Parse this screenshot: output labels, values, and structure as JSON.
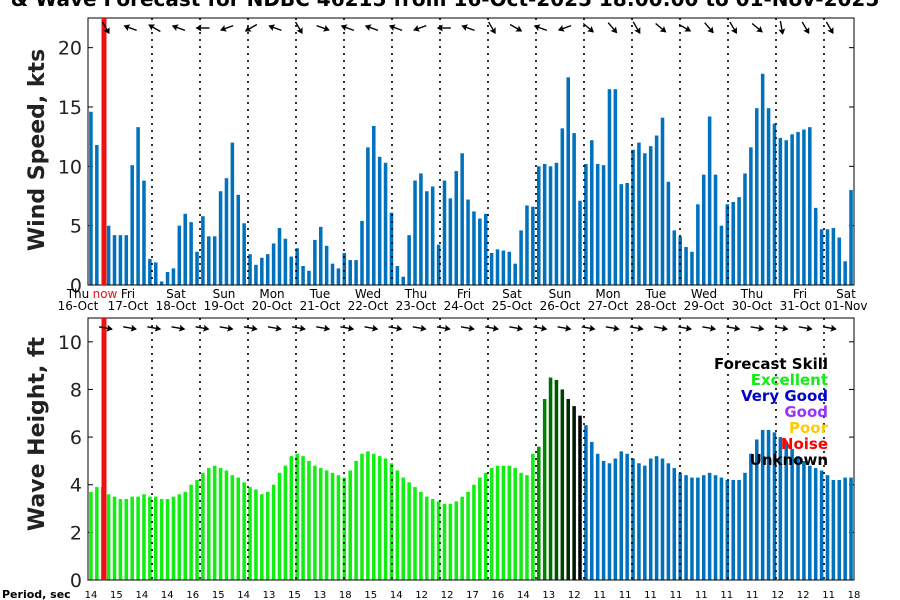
{
  "title": "& Wave Forecast for NDBC 46215 from 16-Oct-2025 18:00:00 to 01-Nov-2025",
  "now_label": "now",
  "period_label": "Period, sec",
  "colors": {
    "bar": "#0072bd",
    "now_line": "#ee1111",
    "excellent": "#11ee11",
    "very_good": "#0000cc",
    "good": "#9933ff",
    "poor": "#ffcc00",
    "noise": "#ff0000",
    "unknown": "#000000"
  },
  "day_ticks": [
    {
      "top": "Thu",
      "bottom": "16-Oct"
    },
    {
      "top": "Fri",
      "bottom": "17-Oct"
    },
    {
      "top": "Sat",
      "bottom": "18-Oct"
    },
    {
      "top": "Sun",
      "bottom": "19-Oct"
    },
    {
      "top": "Mon",
      "bottom": "20-Oct"
    },
    {
      "top": "Tue",
      "bottom": "21-Oct"
    },
    {
      "top": "Wed",
      "bottom": "22-Oct"
    },
    {
      "top": "Thu",
      "bottom": "23-Oct"
    },
    {
      "top": "Fri",
      "bottom": "24-Oct"
    },
    {
      "top": "Sat",
      "bottom": "25-Oct"
    },
    {
      "top": "Sun",
      "bottom": "26-Oct"
    },
    {
      "top": "Mon",
      "bottom": "27-Oct"
    },
    {
      "top": "Tue",
      "bottom": "28-Oct"
    },
    {
      "top": "Wed",
      "bottom": "29-Oct"
    },
    {
      "top": "Thu",
      "bottom": "30-Oct"
    },
    {
      "top": "Fri",
      "bottom": "31-Oct"
    },
    {
      "top": "Sat",
      "bottom": "01-Nov"
    }
  ],
  "legend": {
    "title": "Forecast Skill",
    "items": [
      {
        "label": "Excellent",
        "color": "#11ee11"
      },
      {
        "label": "Very Good",
        "color": "#0000cc"
      },
      {
        "label": "Good",
        "color": "#9933ff"
      },
      {
        "label": "Poor",
        "color": "#ffcc00"
      },
      {
        "label": "Noise",
        "color": "#ff0000"
      },
      {
        "label": "Unknown",
        "color": "#000000"
      }
    ]
  },
  "period_values": [
    14,
    15,
    14,
    14,
    16,
    15,
    14,
    13,
    15,
    13,
    18,
    15,
    14,
    12,
    12,
    17,
    16,
    14,
    13,
    12,
    11,
    11,
    11,
    11,
    11,
    11,
    11,
    12,
    12,
    11,
    18
  ],
  "chart_data": [
    {
      "type": "bar",
      "ylabel": "Wind Speed, kts",
      "ylim": [
        0,
        22.5
      ],
      "yticks": [
        0,
        5,
        10,
        15,
        20
      ],
      "grid": "vertical dotted lines at day boundaries",
      "values": [
        14.6,
        11.8,
        0,
        5.0,
        4.2,
        4.2,
        4.2,
        10.1,
        13.3,
        8.8,
        2.2,
        1.9,
        0.3,
        1.1,
        1.4,
        5.0,
        6.0,
        5.3,
        2.8,
        5.8,
        4.1,
        4.1,
        7.9,
        9.0,
        12.0,
        7.6,
        5.2,
        2.6,
        1.7,
        2.3,
        2.6,
        3.5,
        4.8,
        3.9,
        2.4,
        3.1,
        1.6,
        1.2,
        3.8,
        4.9,
        3.3,
        1.8,
        1.4,
        2.7,
        2.1,
        2.1,
        5.4,
        11.6,
        13.4,
        10.8,
        10.3,
        6.1,
        1.6,
        0.7,
        4.2,
        8.8,
        9.4,
        7.9,
        8.3,
        3.4,
        8.8,
        7.3,
        9.6,
        11.1,
        7.2,
        6.2,
        5.6,
        6.0,
        2.7,
        3.0,
        2.9,
        2.8,
        1.8,
        4.6,
        6.7,
        6.6,
        10.0,
        10.2,
        10.0,
        10.3,
        13.2,
        17.5,
        12.8,
        7.1,
        10.2,
        12.2,
        10.2,
        10.1,
        16.5,
        16.5,
        8.5,
        8.6,
        11.4,
        12.0,
        11.1,
        11.7,
        12.6,
        14.1,
        8.7,
        4.6,
        4.1,
        3.2,
        2.8,
        6.8,
        9.3,
        14.2,
        9.3,
        5.0,
        6.8,
        7.0,
        7.4,
        9.4,
        11.6,
        14.9,
        17.8,
        14.9,
        13.6,
        12.4,
        12.2,
        12.7,
        12.9,
        13.1,
        13.3,
        6.5,
        4.7,
        4.7,
        4.8,
        4.0,
        2.0,
        8.0
      ]
    },
    {
      "type": "bar",
      "ylabel": "Wave Height, ft",
      "ylim": [
        0,
        11
      ],
      "yticks": [
        0,
        2,
        4,
        6,
        8,
        10
      ],
      "grid": "vertical dotted lines at day boundaries",
      "values": [
        3.7,
        3.9,
        3.9,
        3.6,
        3.5,
        3.4,
        3.4,
        3.5,
        3.5,
        3.6,
        3.5,
        3.5,
        3.4,
        3.4,
        3.5,
        3.6,
        3.7,
        4.0,
        4.2,
        4.5,
        4.7,
        4.8,
        4.7,
        4.6,
        4.4,
        4.3,
        4.1,
        3.9,
        3.8,
        3.6,
        3.7,
        4.0,
        4.5,
        4.8,
        5.2,
        5.3,
        5.2,
        5.0,
        4.8,
        4.7,
        4.6,
        4.5,
        4.4,
        4.3,
        4.6,
        5.0,
        5.3,
        5.4,
        5.3,
        5.2,
        5.1,
        4.9,
        4.6,
        4.3,
        4.1,
        3.9,
        3.7,
        3.5,
        3.4,
        3.3,
        3.2,
        3.2,
        3.3,
        3.5,
        3.7,
        4.0,
        4.3,
        4.5,
        4.7,
        4.8,
        4.8,
        4.8,
        4.7,
        4.5,
        4.4,
        5.3,
        5.6,
        7.6,
        8.5,
        8.4,
        8.0,
        7.6,
        7.3,
        6.9,
        6.5,
        5.8,
        5.3,
        5.0,
        4.9,
        5.1,
        5.4,
        5.3,
        5.1,
        4.9,
        4.8,
        5.1,
        5.2,
        5.1,
        4.9,
        4.7,
        4.5,
        4.4,
        4.3,
        4.3,
        4.4,
        4.5,
        4.4,
        4.3,
        4.2,
        4.2,
        4.2,
        4.5,
        5.3,
        5.9,
        6.3,
        6.3,
        6.2,
        6.0,
        5.8,
        5.5,
        5.2,
        5.0,
        4.8,
        4.7,
        4.6,
        4.4,
        4.2,
        4.2,
        4.3,
        4.3
      ]
    }
  ]
}
